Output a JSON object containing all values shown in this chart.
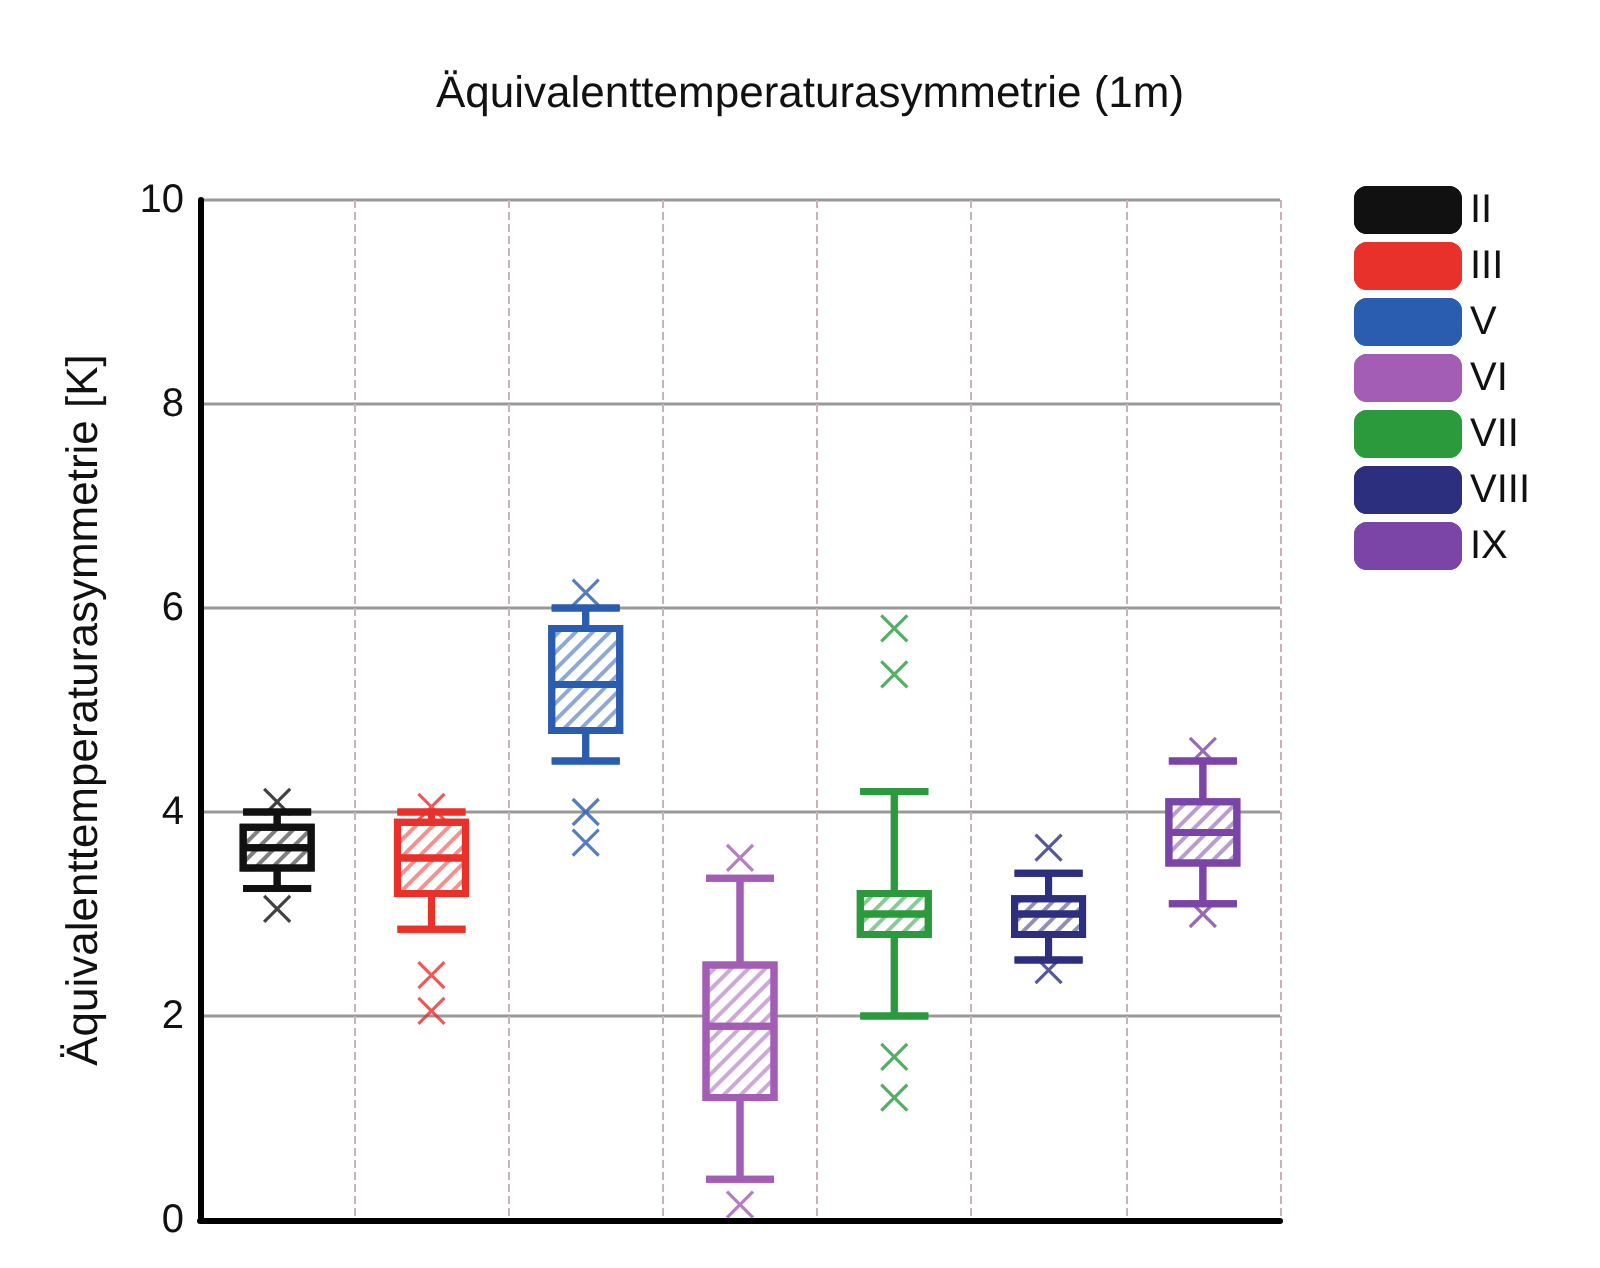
{
  "chart_data": {
    "type": "box",
    "title": "Äquivalenttemperaturasymmetrie (1m)",
    "ylabel": "Äquivalenttemperaturasymmetrie [K]",
    "categories": [
      null,
      null,
      null,
      null,
      null,
      null,
      null
    ],
    "ylim": [
      0,
      10
    ],
    "yticks": [
      0,
      2,
      4,
      6,
      8,
      10
    ],
    "grid": true,
    "legend": "right",
    "tick_labels": "y",
    "series": [
      {
        "name": "II",
        "color": "#111111",
        "boxes": [
          {
            "low": 3.25,
            "q1": 3.45,
            "median": 3.65,
            "q3": 3.85,
            "high": 4.0,
            "outliers": [
              4.1,
              3.05
            ]
          },
          null,
          null,
          null,
          null,
          null,
          null
        ]
      },
      {
        "name": "III",
        "color": "#e8312a",
        "boxes": [
          null,
          {
            "low": 2.85,
            "q1": 3.2,
            "median": 3.55,
            "q3": 3.9,
            "high": 4.0,
            "outliers": [
              4.05,
              2.4,
              2.05
            ]
          },
          null,
          null,
          null,
          null,
          null
        ]
      },
      {
        "name": "V",
        "color": "#2a5db0",
        "boxes": [
          null,
          null,
          {
            "low": 4.5,
            "q1": 4.8,
            "median": 5.25,
            "q3": 5.8,
            "high": 6.0,
            "outliers": [
              6.15,
              4.0,
              3.7
            ]
          },
          null,
          null,
          null,
          null
        ]
      },
      {
        "name": "VI",
        "color": "#a35db5",
        "boxes": [
          null,
          null,
          null,
          {
            "low": 0.4,
            "q1": 1.2,
            "median": 1.9,
            "q3": 2.5,
            "high": 3.35,
            "outliers": [
              3.55,
              0.15
            ]
          },
          null,
          null,
          null
        ]
      },
      {
        "name": "VII",
        "color": "#2a9a3c",
        "boxes": [
          null,
          null,
          null,
          null,
          {
            "low": 2.0,
            "q1": 2.8,
            "median": 3.0,
            "q3": 3.2,
            "high": 4.2,
            "outliers": [
              5.8,
              5.35,
              1.6,
              1.2
            ]
          },
          null,
          null
        ]
      },
      {
        "name": "VIII",
        "color": "#2b2f7e",
        "boxes": [
          null,
          null,
          null,
          null,
          null,
          {
            "low": 2.55,
            "q1": 2.8,
            "median": 3.0,
            "q3": 3.15,
            "high": 3.4,
            "outliers": [
              3.65,
              2.45
            ]
          },
          null
        ]
      },
      {
        "name": "IX",
        "color": "#7b45a8",
        "boxes": [
          null,
          null,
          null,
          null,
          null,
          null,
          {
            "low": 3.1,
            "q1": 3.5,
            "median": 3.8,
            "q3": 4.1,
            "high": 4.5,
            "outliers": [
              4.6,
              3.0
            ]
          }
        ]
      }
    ]
  }
}
